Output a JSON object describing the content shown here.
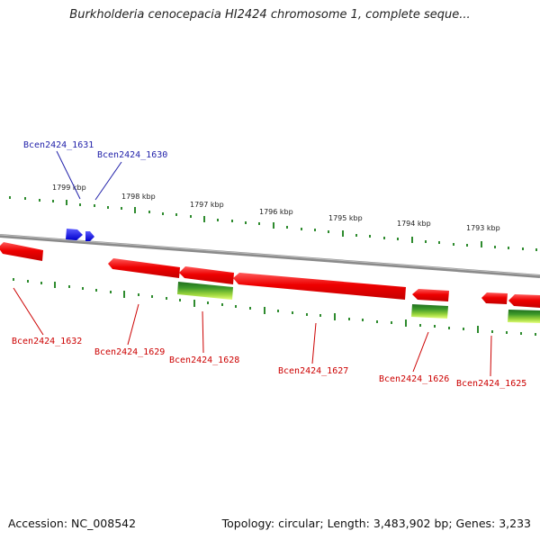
{
  "title": "Burkholderia cenocepacia HI2424 chromosome 1, complete seque...",
  "footer": {
    "accession": "Accession: NC_008542",
    "summary": "Topology: circular; Length: 3,483,902 bp; Genes: 3,233"
  },
  "colors": {
    "backbone": "#8a8a8a",
    "tick": "#2e8b2e",
    "forward_gene": "#1a1aee",
    "reverse_gene": "#ee0000",
    "rna_feature": "#7ec24a",
    "label_forward": "#2222aa",
    "label_reverse": "#cc0000"
  },
  "scale_labels": [
    "1799 kbp",
    "1798 kbp",
    "1797 kbp",
    "1796 kbp",
    "1795 kbp",
    "1794 kbp",
    "1793 kbp"
  ],
  "genes": [
    {
      "name": "Bcen2424_1631",
      "strand": "forward"
    },
    {
      "name": "Bcen2424_1630",
      "strand": "forward"
    },
    {
      "name": "Bcen2424_1632",
      "strand": "reverse"
    },
    {
      "name": "Bcen2424_1629",
      "strand": "reverse"
    },
    {
      "name": "Bcen2424_1628",
      "strand": "reverse"
    },
    {
      "name": "Bcen2424_1627",
      "strand": "reverse"
    },
    {
      "name": "Bcen2424_1626",
      "strand": "reverse"
    },
    {
      "name": "Bcen2424_1625",
      "strand": "reverse"
    }
  ]
}
